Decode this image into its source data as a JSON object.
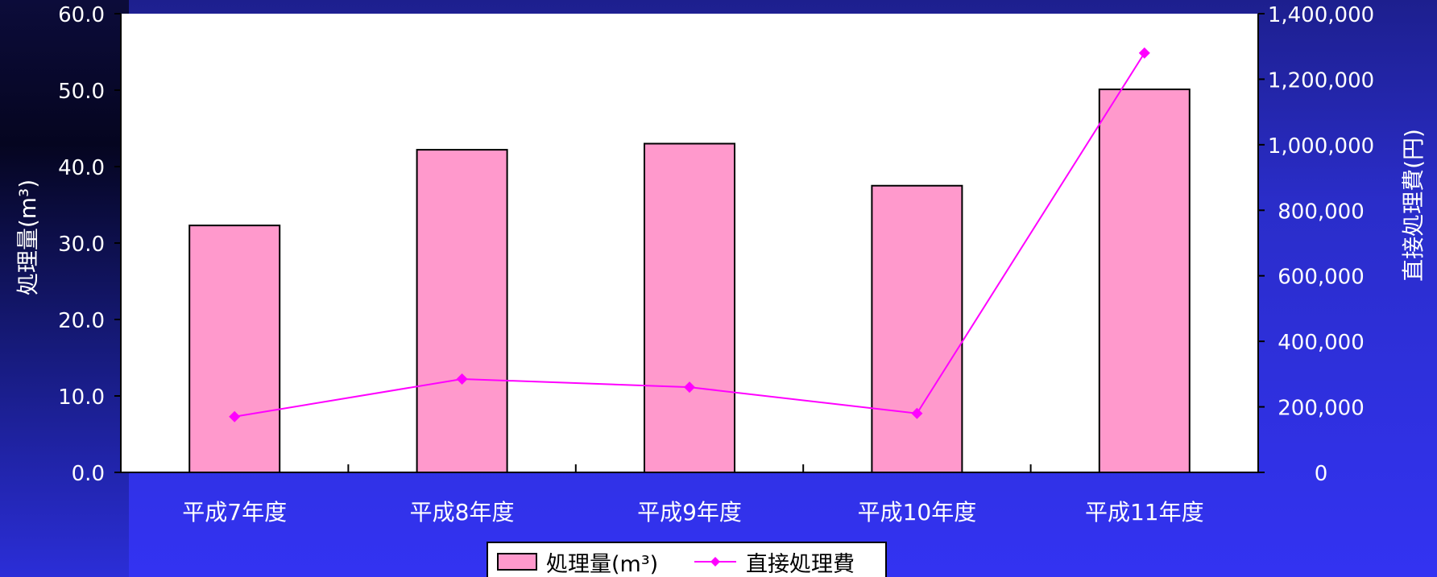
{
  "chart_data": {
    "type": "bar",
    "categories": [
      "平成7年度",
      "平成8年度",
      "平成9年度",
      "平成10年度",
      "平成11年度"
    ],
    "series": [
      {
        "name": "処理量(m³)",
        "kind": "bar",
        "axis": "left",
        "values": [
          32.3,
          42.2,
          43.0,
          37.5,
          50.1
        ],
        "color": "#ff99cc"
      },
      {
        "name": "直接処理費",
        "kind": "line",
        "axis": "right",
        "values": [
          170000,
          285000,
          260000,
          180000,
          1280000
        ],
        "color": "#ff00ff"
      }
    ],
    "ylabel_left": "処理量(m³)",
    "ylabel_right": "直接処理費(円)",
    "ylim_left": [
      0,
      60
    ],
    "ylim_right": [
      0,
      1400000
    ],
    "yticks_left": [
      "0.0",
      "10.0",
      "20.0",
      "30.0",
      "40.0",
      "50.0",
      "60.0"
    ],
    "yticks_right": [
      "0",
      "200,000",
      "400,000",
      "600,000",
      "800,000",
      "1,000,000",
      "1,200,000",
      "1,400,000"
    ],
    "legend_position": "bottom",
    "grid": false,
    "colors": {
      "background": "#3333f2",
      "plot_area": "#ffffff",
      "axis_text": "#ffffff"
    }
  }
}
